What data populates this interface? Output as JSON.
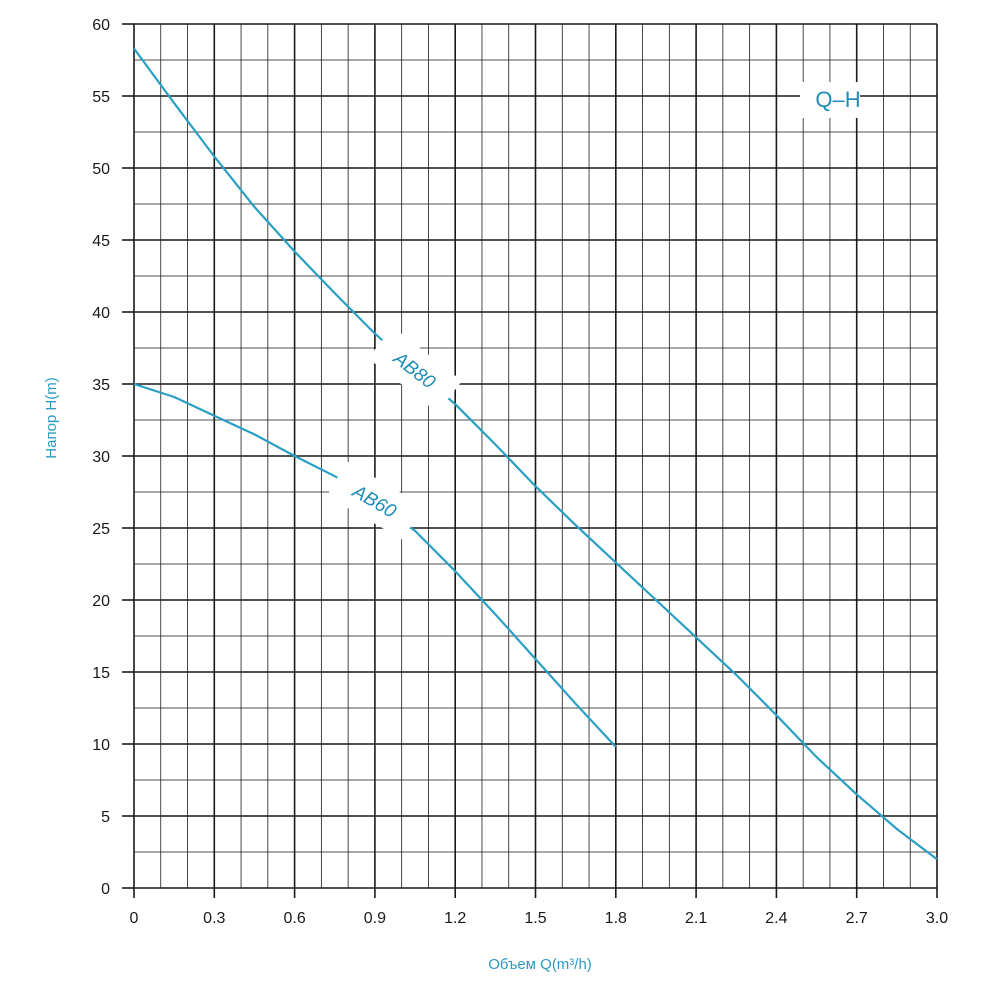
{
  "chart_data": {
    "type": "line",
    "title": "Q–H",
    "xlabel": "Объем Q(m³/h)",
    "ylabel": "Напор H(m)",
    "xlim": [
      0,
      3.0
    ],
    "ylim": [
      0,
      60
    ],
    "x_ticks": [
      "0",
      "0.3",
      "0.6",
      "0.9",
      "1.2",
      "1.5",
      "1.8",
      "2.1",
      "2.4",
      "2.7",
      "3.0"
    ],
    "y_ticks": [
      "0",
      "5",
      "10",
      "15",
      "20",
      "25",
      "30",
      "35",
      "40",
      "45",
      "50",
      "55",
      "60"
    ],
    "grid": true,
    "series": [
      {
        "name": "AB80",
        "color": "#2a9fc4",
        "x": [
          0,
          0.15,
          0.3,
          0.45,
          0.6,
          0.75,
          0.9,
          1.05,
          1.2,
          1.35,
          1.5,
          1.65,
          1.8,
          1.95,
          2.1,
          2.25,
          2.4,
          2.55,
          2.7,
          2.85,
          3.0
        ],
        "y": [
          58.3,
          54.5,
          50.8,
          47.3,
          44.2,
          41.3,
          38.5,
          36.0,
          33.6,
          30.8,
          27.9,
          25.2,
          22.6,
          20.0,
          17.4,
          14.8,
          12.0,
          9.1,
          6.5,
          4.1,
          2.0
        ]
      },
      {
        "name": "AB60",
        "color": "#2a9fc4",
        "x": [
          0,
          0.15,
          0.3,
          0.45,
          0.6,
          0.75,
          0.9,
          1.05,
          1.2,
          1.35,
          1.5,
          1.65,
          1.8
        ],
        "y": [
          35.0,
          34.1,
          32.8,
          31.5,
          30.0,
          28.6,
          26.9,
          24.8,
          22.0,
          19.0,
          15.9,
          12.8,
          9.8
        ]
      }
    ]
  }
}
